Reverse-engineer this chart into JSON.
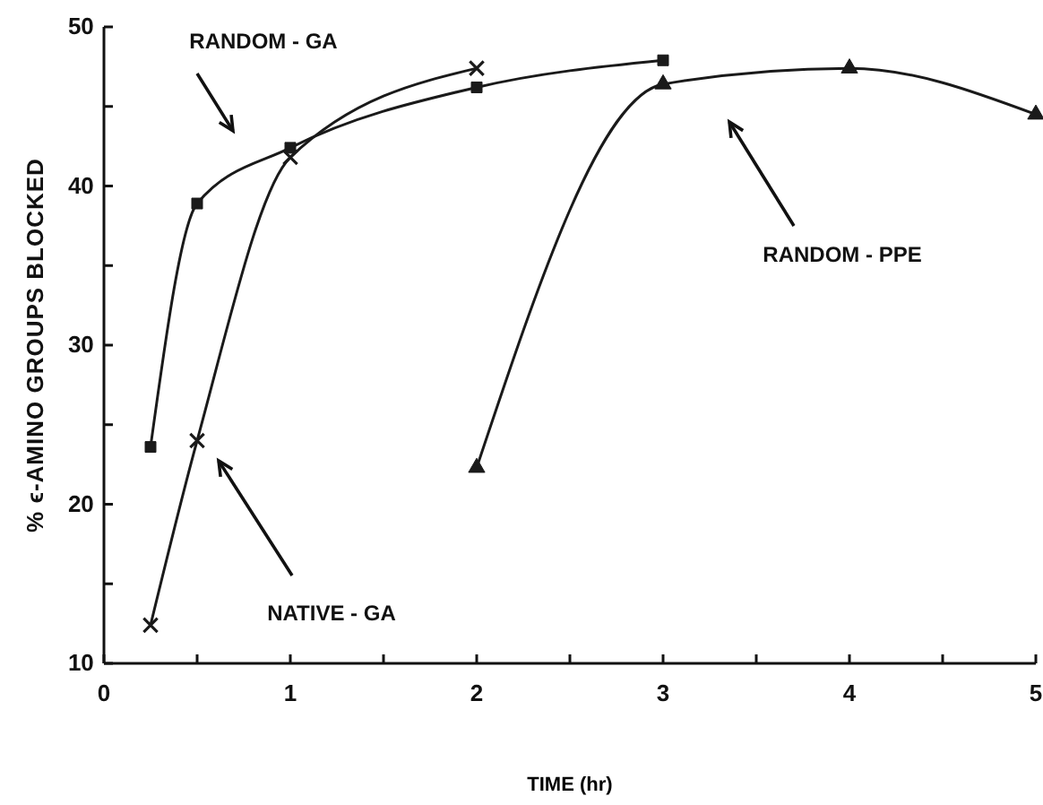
{
  "chart_data": {
    "type": "line",
    "xlabel": "TIME (hr)",
    "ylabel": "% ϵ-AMINO GROUPS BLOCKED",
    "xlim": [
      0,
      5
    ],
    "ylim": [
      10,
      50
    ],
    "xticks": [
      0,
      {
        "value": 0.5,
        "label": null
      },
      1,
      {
        "value": 1.5,
        "label": null
      },
      2,
      {
        "value": 2.5,
        "label": null
      },
      3,
      {
        "value": 3.5,
        "label": null
      },
      4,
      {
        "value": 4.5,
        "label": null
      },
      5
    ],
    "yticks": [
      10,
      {
        "value": 15,
        "label": null
      },
      20,
      {
        "value": 25,
        "label": null
      },
      30,
      {
        "value": 35,
        "label": null
      },
      40,
      {
        "value": 45,
        "label": null
      },
      50
    ],
    "grid": false,
    "line_style": "solid",
    "series": [
      {
        "color": "#1a1a1a",
        "marker": "square",
        "x": [
          0.25,
          0.5,
          1,
          2,
          3
        ],
        "values": [
          23.6,
          38.9,
          42.4,
          46.2,
          47.9
        ]
      },
      {
        "color": "#1a1a1a",
        "marker": "cross",
        "x": [
          0.25,
          0.5,
          1,
          2
        ],
        "values": [
          12.4,
          24,
          41.8,
          47.4
        ]
      },
      {
        "color": "#1a1a1a",
        "marker": "triangle",
        "x": [
          2,
          3,
          4,
          5
        ],
        "values": [
          22.3,
          46.4,
          47.4,
          44.5
        ]
      }
    ],
    "annotations": [
      "RANDOM - GA",
      "NATIVE - GA",
      "RANDOM - PPE"
    ]
  }
}
